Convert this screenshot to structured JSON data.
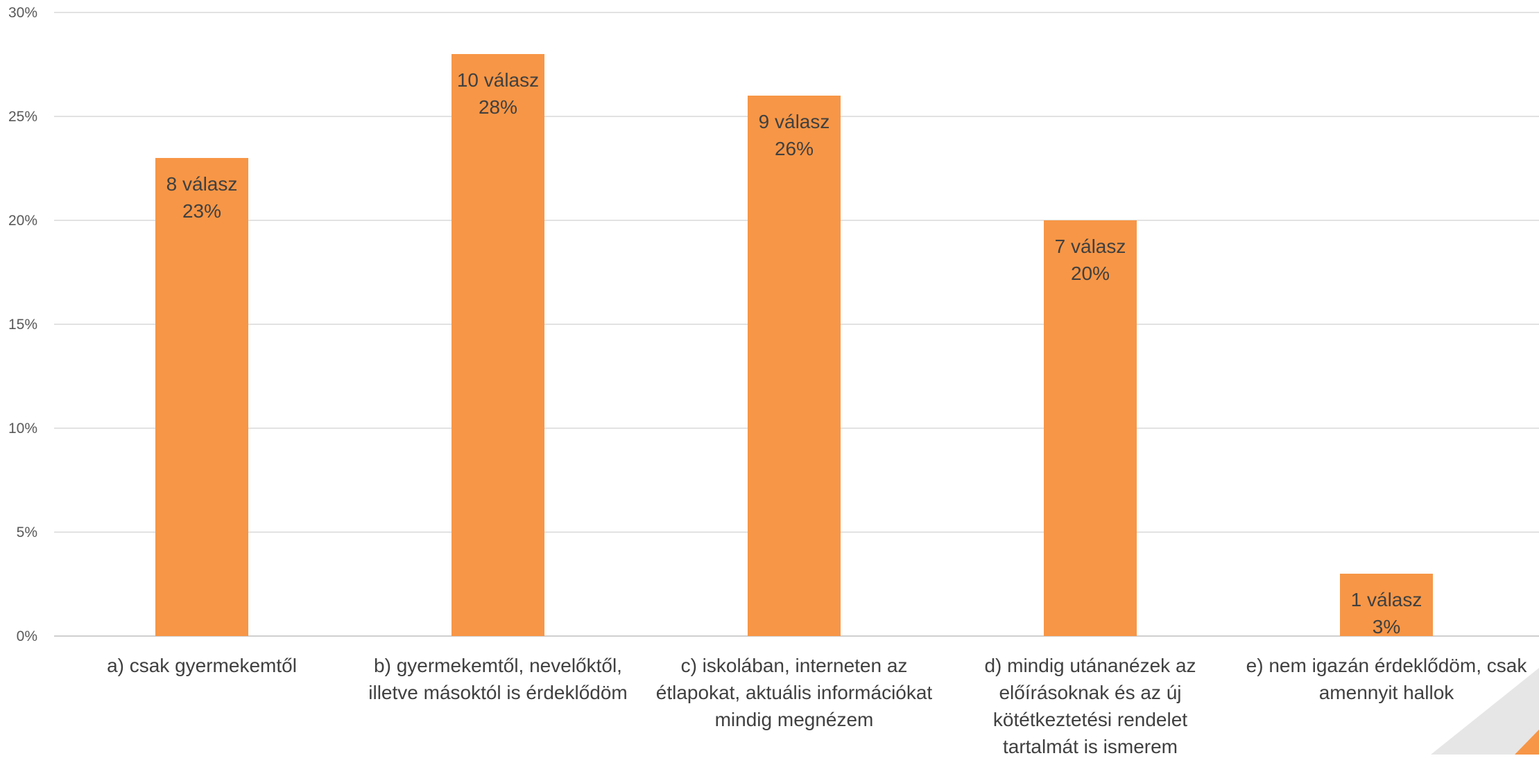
{
  "chart_data": {
    "type": "bar",
    "categories": [
      [
        "a) csak gyermekemtől"
      ],
      [
        "b) gyermekemtől, nevelőktől,",
        "illetve másoktól is érdeklődöm"
      ],
      [
        "c) iskolában, interneten az",
        "étlapokat, aktuális információkat",
        "mindig megnézem"
      ],
      [
        "d) mindig utánanézek az",
        "előírásoknak és az új",
        "kötétkeztetési rendelet",
        "tartalmát is ismerem"
      ],
      [
        "e) nem igazán érdeklődöm, csak",
        "amennyit hallok"
      ]
    ],
    "values": [
      23,
      28,
      26,
      20,
      3
    ],
    "data_labels": [
      [
        "8 válasz",
        "23%"
      ],
      [
        "10 válasz",
        "28%"
      ],
      [
        "9 válasz",
        "26%"
      ],
      [
        "7 válasz",
        "20%"
      ],
      [
        "1 válasz",
        "3%"
      ]
    ],
    "ylim": [
      0,
      30
    ],
    "yticks": [
      0,
      5,
      10,
      15,
      20,
      25,
      30
    ],
    "ytick_labels": [
      "0%",
      "5%",
      "10%",
      "15%",
      "20%",
      "25%",
      "30%"
    ],
    "grid": true,
    "bar_color": "#F79646"
  },
  "decoration": {
    "corner_gray": "#E7E6E6",
    "corner_orange": "#F79646"
  }
}
